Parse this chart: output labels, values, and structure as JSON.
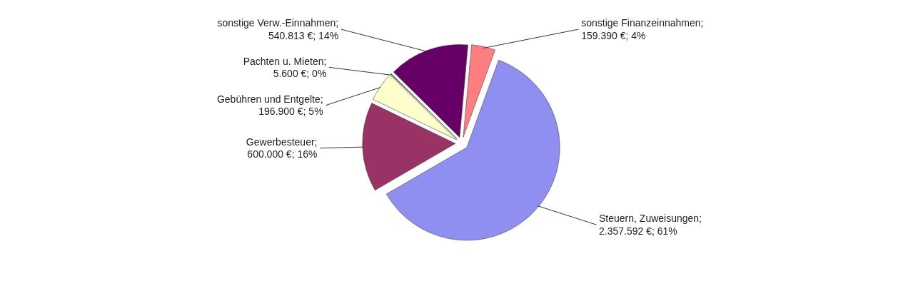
{
  "chart_data": {
    "type": "pie",
    "categories": [
      "Steuern, Zuweisungen",
      "Gewerbesteuer",
      "Gebühren und Entgelte",
      "Pachten u. Mieten",
      "sonstige Verw.-Einnahmen",
      "sonstige Finanzeinnahmen"
    ],
    "values": [
      2357592,
      600000,
      196900,
      5600,
      540813,
      159390
    ],
    "value_labels": [
      ";\n2.357.592 €; 61%",
      ";\n600.000 €; 16%",
      ";\n196.900 €; 5%",
      ";\n5.600 €; 0%",
      ";\n540.813 €; 14%",
      ";\n159.390 €; 4%"
    ],
    "colors": [
      "#8f8ff2",
      "#993366",
      "#ffffcc",
      "#3c5f44",
      "#660066",
      "#ff7c80"
    ]
  }
}
